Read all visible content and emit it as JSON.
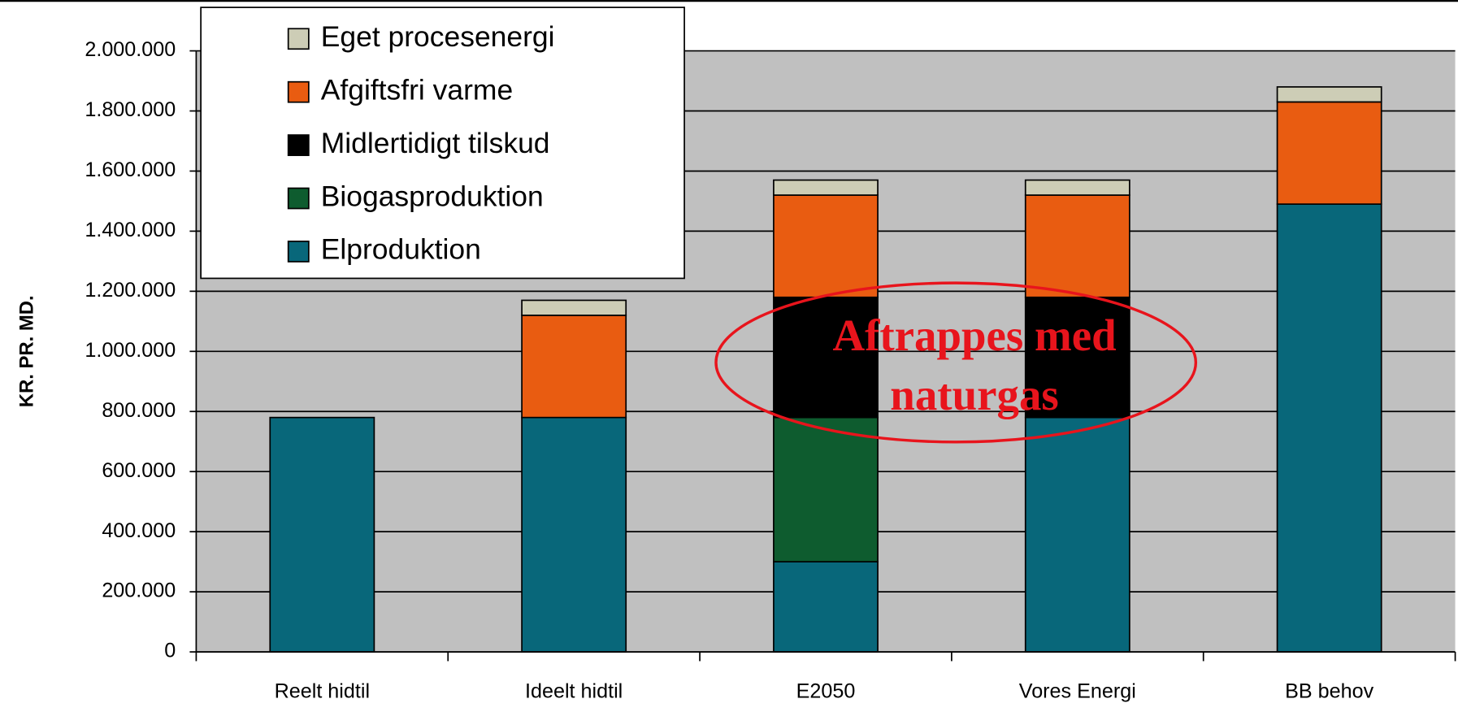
{
  "chart_data": {
    "type": "stacked_bar",
    "y_label": "KR. PR. MD.",
    "categories": [
      "Reelt hidtil",
      "Ideelt hidtil",
      "E2050",
      "Vores Energi",
      "BB behov"
    ],
    "series": [
      {
        "name": "Elproduktion",
        "color": "#08677a",
        "values": [
          780000,
          780000,
          300000,
          780000,
          1490000
        ]
      },
      {
        "name": "Biogasproduktion",
        "color": "#0e5c2f",
        "values": [
          0,
          0,
          480000,
          0,
          0
        ]
      },
      {
        "name": "Midlertidigt tilskud",
        "color": "#000000",
        "values": [
          0,
          0,
          400000,
          400000,
          0
        ]
      },
      {
        "name": "Afgiftsfri varme",
        "color": "#e95c11",
        "values": [
          0,
          340000,
          340000,
          340000,
          340000
        ]
      },
      {
        "name": "Eget procesenergi",
        "color": "#cdcdb6",
        "values": [
          0,
          50000,
          50000,
          50000,
          50000
        ]
      }
    ],
    "ylim": [
      0,
      2000000
    ],
    "yticks": [
      0,
      {
        "value": 200000,
        "label": "200.000"
      },
      {
        "value": 400000,
        "label": "400.000"
      },
      {
        "value": 600000,
        "label": "600.000"
      },
      {
        "value": 800000,
        "label": "800.000"
      },
      {
        "value": 1000000,
        "label": "1.000.000"
      },
      {
        "value": 1200000,
        "label": "1.200.000"
      },
      {
        "value": 1400000,
        "label": "1.400.000"
      },
      {
        "value": 1600000,
        "label": "1.600.000"
      },
      {
        "value": 1800000,
        "label": "1.800.000"
      },
      {
        "value": 2000000,
        "label": "2.000.000"
      }
    ],
    "grid": true,
    "legend": "top-left",
    "annotation": [
      "Aftrappes med",
      "naturgas"
    ]
  }
}
